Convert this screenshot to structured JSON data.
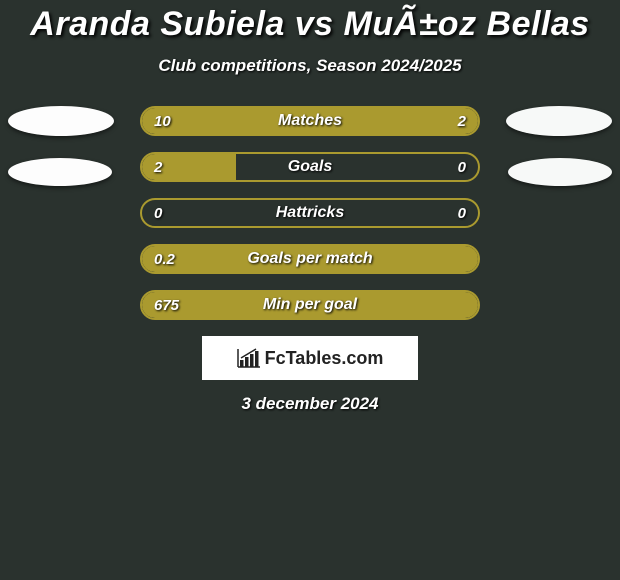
{
  "title": "Aranda Subiela vs MuÃ±oz Bellas",
  "subtitle": "Club competitions, Season 2024/2025",
  "colors": {
    "background": "#2a322e",
    "bar": "#aa9a2f",
    "oval_left": "#fdfdfd",
    "oval_right": "#f7f9f8",
    "text": "#ffffff",
    "logo_bg": "#ffffff",
    "logo_text": "#222222"
  },
  "rows": [
    {
      "label": "Matches",
      "left": "10",
      "right": "2",
      "left_pct": 80,
      "right_pct": 20,
      "show_ovals": "p1"
    },
    {
      "label": "Goals",
      "left": "2",
      "right": "0",
      "left_pct": 28,
      "right_pct": 0,
      "show_ovals": "p2"
    },
    {
      "label": "Hattricks",
      "left": "0",
      "right": "0",
      "left_pct": 0,
      "right_pct": 0,
      "show_ovals": "none"
    },
    {
      "label": "Goals per match",
      "left": "0.2",
      "right": "",
      "left_pct": 100,
      "right_pct": 0,
      "show_ovals": "none"
    },
    {
      "label": "Min per goal",
      "left": "675",
      "right": "",
      "left_pct": 100,
      "right_pct": 0,
      "show_ovals": "none"
    }
  ],
  "logo_text": "FcTables.com",
  "date": "3 december 2024"
}
